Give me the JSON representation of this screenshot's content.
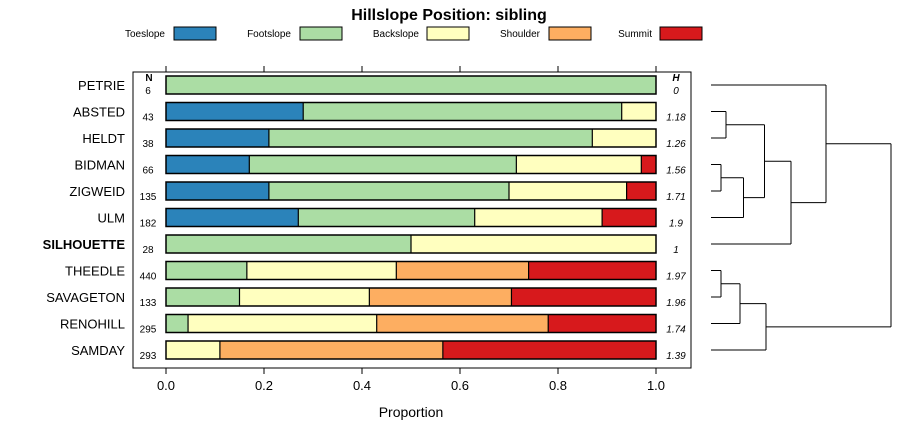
{
  "chart_data": {
    "type": "bar",
    "subtype": "stacked-horizontal-proportion",
    "title": "Hillslope Position: sibling",
    "xlabel": "Proportion",
    "xlim": [
      0,
      1
    ],
    "xticks": [
      "0.0",
      "0.2",
      "0.4",
      "0.6",
      "0.8",
      "1.0"
    ],
    "series_names": [
      "Toeslope",
      "Footslope",
      "Backslope",
      "Shoulder",
      "Summit"
    ],
    "colors": [
      "#2b83ba",
      "#abdda4",
      "#ffffbf",
      "#fdae61",
      "#d7191c"
    ],
    "n_header": "N",
    "h_header": "H",
    "rows": [
      {
        "label": "PETRIE",
        "bold": false,
        "n": "6",
        "h": "0",
        "values": [
          0,
          1.0,
          0,
          0,
          0
        ]
      },
      {
        "label": "ABSTED",
        "bold": false,
        "n": "43",
        "h": "1.18",
        "values": [
          0.28,
          0.65,
          0.07,
          0,
          0
        ]
      },
      {
        "label": "HELDT",
        "bold": false,
        "n": "38",
        "h": "1.26",
        "values": [
          0.21,
          0.66,
          0.13,
          0,
          0
        ]
      },
      {
        "label": "BIDMAN",
        "bold": false,
        "n": "66",
        "h": "1.56",
        "values": [
          0.17,
          0.545,
          0.255,
          0,
          0.03
        ]
      },
      {
        "label": "ZIGWEID",
        "bold": false,
        "n": "135",
        "h": "1.71",
        "values": [
          0.21,
          0.49,
          0.24,
          0,
          0.06
        ]
      },
      {
        "label": "ULM",
        "bold": false,
        "n": "182",
        "h": "1.9",
        "values": [
          0.27,
          0.36,
          0.26,
          0,
          0.11
        ]
      },
      {
        "label": "SILHOUETTE",
        "bold": true,
        "n": "28",
        "h": "1",
        "values": [
          0,
          0.5,
          0.5,
          0,
          0
        ]
      },
      {
        "label": "THEEDLE",
        "bold": false,
        "n": "440",
        "h": "1.97",
        "values": [
          0,
          0.165,
          0.305,
          0.27,
          0.26
        ]
      },
      {
        "label": "SAVAGETON",
        "bold": false,
        "n": "133",
        "h": "1.96",
        "values": [
          0,
          0.15,
          0.265,
          0.29,
          0.295
        ]
      },
      {
        "label": "RENOHILL",
        "bold": false,
        "n": "295",
        "h": "1.74",
        "values": [
          0,
          0.045,
          0.385,
          0.35,
          0.22
        ]
      },
      {
        "label": "SAMDAY",
        "bold": false,
        "n": "293",
        "h": "1.39",
        "values": [
          0,
          0,
          0.11,
          0.455,
          0.435
        ]
      }
    ],
    "dendrogram": {
      "type": "dendrogram",
      "orientation": "right",
      "leaf_order": [
        "PETRIE",
        "ABSTED",
        "HELDT",
        "BIDMAN",
        "ZIGWEID",
        "ULM",
        "SILHOUETTE",
        "THEEDLE",
        "SAVAGETON",
        "RENOHILL",
        "SAMDAY"
      ],
      "merges": [
        {
          "a": "BIDMAN",
          "b": "ZIGWEID",
          "height": 0.2
        },
        {
          "a": "THEEDLE",
          "b": "SAVAGETON",
          "height": 0.2
        },
        {
          "a": "ABSTED",
          "b": "HELDT",
          "height": 0.3
        },
        {
          "a": "BIDMAN+ZIGWEID",
          "b": "ULM",
          "height": 0.65
        },
        {
          "a": "THEEDLE+SAVAGETON",
          "b": "RENOHILL",
          "height": 0.58
        },
        {
          "a": "ABSTED+HELDT",
          "b": "BIDMAN+ZIGWEID+ULM",
          "height": 1.07
        },
        {
          "a": "THEEDLE+SAVAGETON+RENOHILL",
          "b": "SAMDAY",
          "height": 1.1
        },
        {
          "a": "ABSTED..ULM",
          "b": "SILHOUETTE",
          "height": 1.6
        },
        {
          "a": "PETRIE",
          "b": "ABSTED..SILHOUETTE",
          "height": 2.3
        },
        {
          "a": "PETRIE..SILHOUETTE",
          "b": "THEEDLE..SAMDAY",
          "height": 3.6
        }
      ]
    }
  }
}
